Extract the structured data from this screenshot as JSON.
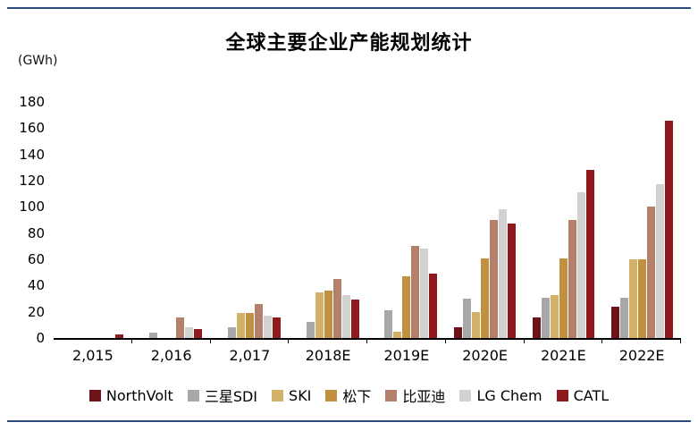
{
  "chart_data": {
    "type": "bar",
    "title": "全球主要企业产能规划统计",
    "unit_label": "(GWh)",
    "categories": [
      "2,015",
      "2,016",
      "2,017",
      "2018E",
      "2019E",
      "2020E",
      "2021E",
      "2022E"
    ],
    "series": [
      {
        "name": "NorthVolt",
        "color": "#6e1319",
        "values": [
          0,
          0,
          0,
          0,
          0,
          8,
          16,
          24
        ]
      },
      {
        "name": "三星SDI",
        "color": "#a8a8a8",
        "values": [
          0,
          4,
          8,
          12,
          21,
          30,
          31,
          31
        ]
      },
      {
        "name": "SKI",
        "color": "#d4b168",
        "values": [
          0,
          0,
          19,
          35,
          5,
          20,
          33,
          60
        ]
      },
      {
        "name": "松下",
        "color": "#c2913f",
        "values": [
          0,
          0,
          19,
          36,
          47,
          61,
          61,
          60
        ]
      },
      {
        "name": "比亚迪",
        "color": "#b5806b",
        "values": [
          0,
          16,
          26,
          45,
          70,
          90,
          90,
          100
        ]
      },
      {
        "name": "LG Chem",
        "color": "#d2d2d2",
        "values": [
          0,
          8,
          17,
          33,
          68,
          98,
          111,
          117
        ]
      },
      {
        "name": "CATL",
        "color": "#8e1a1e",
        "values": [
          3,
          7,
          16,
          29,
          49,
          87,
          128,
          166
        ]
      }
    ],
    "ylim": [
      0,
      180
    ],
    "yticks": [
      0,
      20,
      40,
      60,
      80,
      100,
      120,
      140,
      160,
      180
    ],
    "grid": false,
    "legend_position": "bottom"
  }
}
